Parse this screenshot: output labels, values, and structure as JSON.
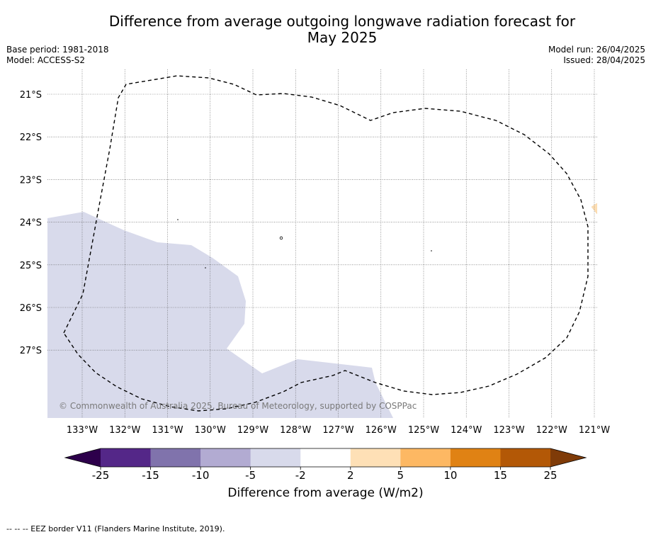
{
  "title_line1": "Difference from average outgoing longwave radiation forecast for",
  "title_line2": "May 2025",
  "base_period": "Base period: 1981-2018",
  "model": "Model: ACCESS-S2",
  "model_run": "Model run: 26/04/2025",
  "issued": "Issued: 28/04/2025",
  "copyright": "© Commonwealth of Australia 2025, Bureau of Meteorology, supported by COSPPac",
  "footer_note": "--  --  -- EEZ border V11 (Flanders Marine Institute, 2019).",
  "map": {
    "lat_labels": [
      "21°S",
      "22°S",
      "23°S",
      "24°S",
      "25°S",
      "26°S",
      "27°S"
    ],
    "lon_labels": [
      "133°W",
      "132°W",
      "131°W",
      "130°W",
      "129°W",
      "128°W",
      "127°W",
      "126°W",
      "125°W",
      "124°W",
      "123°W",
      "122°W",
      "121°W"
    ],
    "layers": [
      "OLR anomaly shading",
      "EEZ border",
      "graticule"
    ]
  },
  "colorbar": {
    "title": "Difference from average (W/m2)",
    "ticks": [
      "-25",
      "-15",
      "-10",
      "-5",
      "-2",
      "2",
      "5",
      "10",
      "15",
      "25"
    ],
    "colors": [
      "#2d004b",
      "#542788",
      "#8073ac",
      "#b2abd2",
      "#d8daeb",
      "#ffffff",
      "#fee0b6",
      "#fdb863",
      "#e08214",
      "#b35806",
      "#7f3b08"
    ]
  }
}
